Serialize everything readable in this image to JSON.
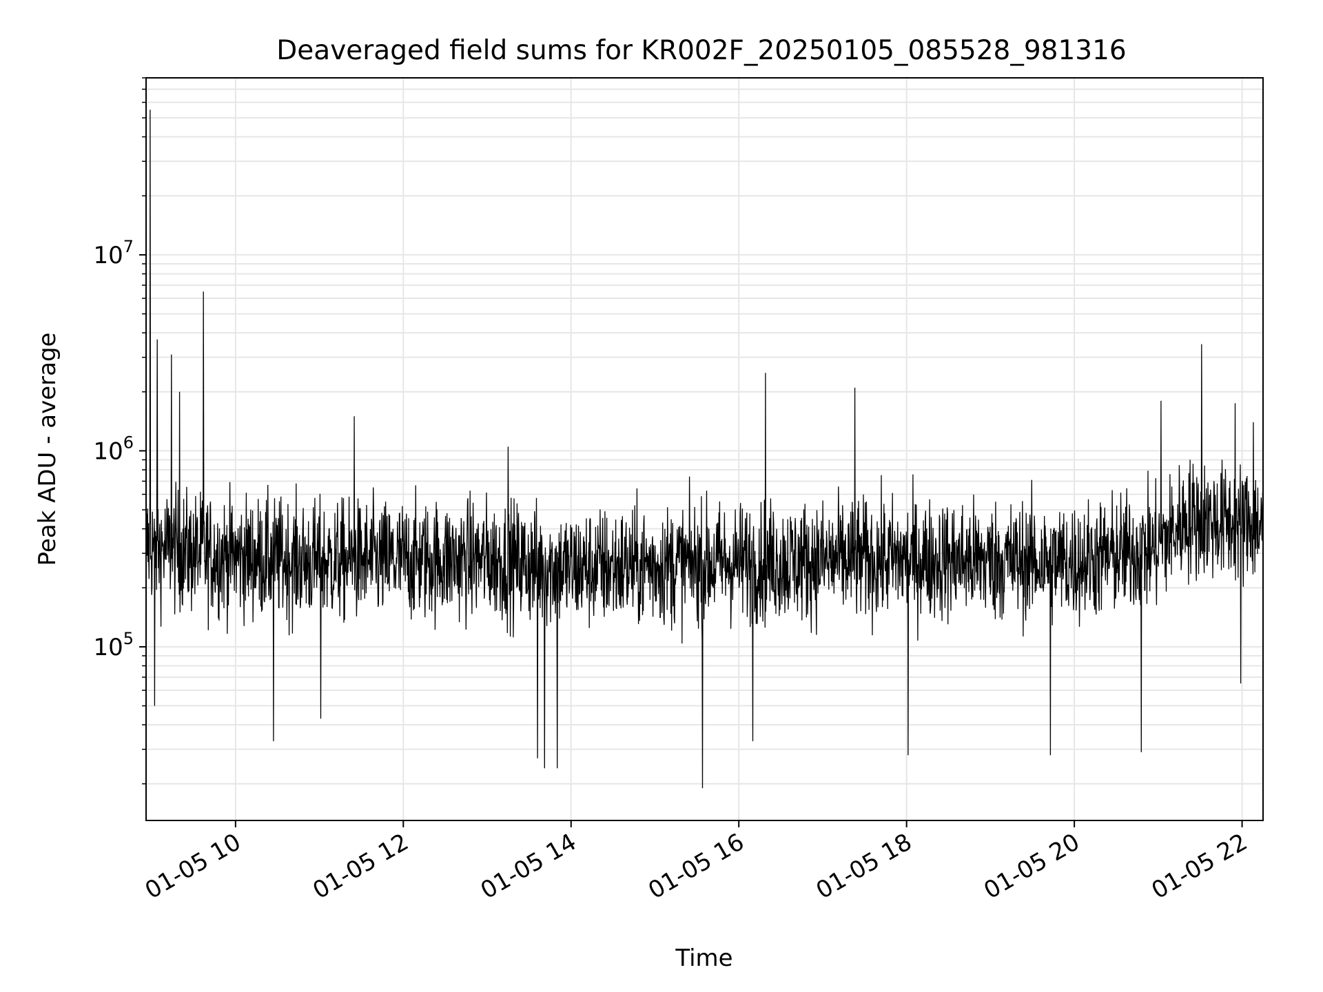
{
  "chart_data": {
    "type": "line",
    "title": "Deaveraged field sums for KR002F_20250105_085528_981316",
    "xlabel": "Time",
    "ylabel": "Peak ADU - average",
    "y_scale": "log",
    "ylim": [
      13000,
      80000000
    ],
    "xlim": [
      "01-05 08:56",
      "01-05 22:15"
    ],
    "grid": "on (major and minor)",
    "line_color": "#000000",
    "x_ticks": [
      "01-05 10",
      "01-05 12",
      "01-05 14",
      "01-05 16",
      "01-05 18",
      "01-05 20",
      "01-05 22"
    ],
    "y_ticks": [
      {
        "value": 100000,
        "base": "10",
        "exp": "5"
      },
      {
        "value": 1000000,
        "base": "10",
        "exp": "6"
      },
      {
        "value": 10000000,
        "base": "10",
        "exp": "7"
      }
    ],
    "series": [
      {
        "baseline_y": [
          {
            "x": "01-05 08:56",
            "y": 330000
          },
          {
            "x": "01-05 09:30",
            "y": 300000
          },
          {
            "x": "01-05 11:00",
            "y": 270000
          },
          {
            "x": "01-05 13:00",
            "y": 280000
          },
          {
            "x": "01-05 14:00",
            "y": 250000
          },
          {
            "x": "01-05 16:00",
            "y": 270000
          },
          {
            "x": "01-05 18:00",
            "y": 280000
          },
          {
            "x": "01-05 20:00",
            "y": 270000
          },
          {
            "x": "01-05 21:00",
            "y": 320000
          },
          {
            "x": "01-05 21:20",
            "y": 450000
          },
          {
            "x": "01-05 22:15",
            "y": 420000
          }
        ],
        "spikes": [
          {
            "x": "01-05 08:59",
            "y": 55000000
          },
          {
            "x": "01-05 09:04",
            "y": 3700000
          },
          {
            "x": "01-05 09:14",
            "y": 3100000
          },
          {
            "x": "01-05 09:20",
            "y": 2000000
          },
          {
            "x": "01-05 09:37",
            "y": 6500000
          },
          {
            "x": "01-05 11:25",
            "y": 1500000
          },
          {
            "x": "01-05 13:15",
            "y": 1050000
          },
          {
            "x": "01-05 16:19",
            "y": 2500000
          },
          {
            "x": "01-05 17:23",
            "y": 2100000
          },
          {
            "x": "01-05 21:02",
            "y": 1800000
          },
          {
            "x": "01-05 21:31",
            "y": 3500000
          },
          {
            "x": "01-05 21:55",
            "y": 1750000
          },
          {
            "x": "01-05 22:08",
            "y": 1400000
          }
        ],
        "dips": [
          {
            "x": "01-05 09:02",
            "y": 50000
          },
          {
            "x": "01-05 10:27",
            "y": 33000
          },
          {
            "x": "01-05 11:01",
            "y": 43000
          },
          {
            "x": "01-05 13:36",
            "y": 27000
          },
          {
            "x": "01-05 13:41",
            "y": 24000
          },
          {
            "x": "01-05 13:50",
            "y": 24000
          },
          {
            "x": "01-05 15:34",
            "y": 19000
          },
          {
            "x": "01-05 16:10",
            "y": 33000
          },
          {
            "x": "01-05 18:01",
            "y": 28000
          },
          {
            "x": "01-05 19:43",
            "y": 28000
          },
          {
            "x": "01-05 20:48",
            "y": 29000
          },
          {
            "x": "01-05 21:59",
            "y": 65000
          }
        ]
      }
    ]
  }
}
